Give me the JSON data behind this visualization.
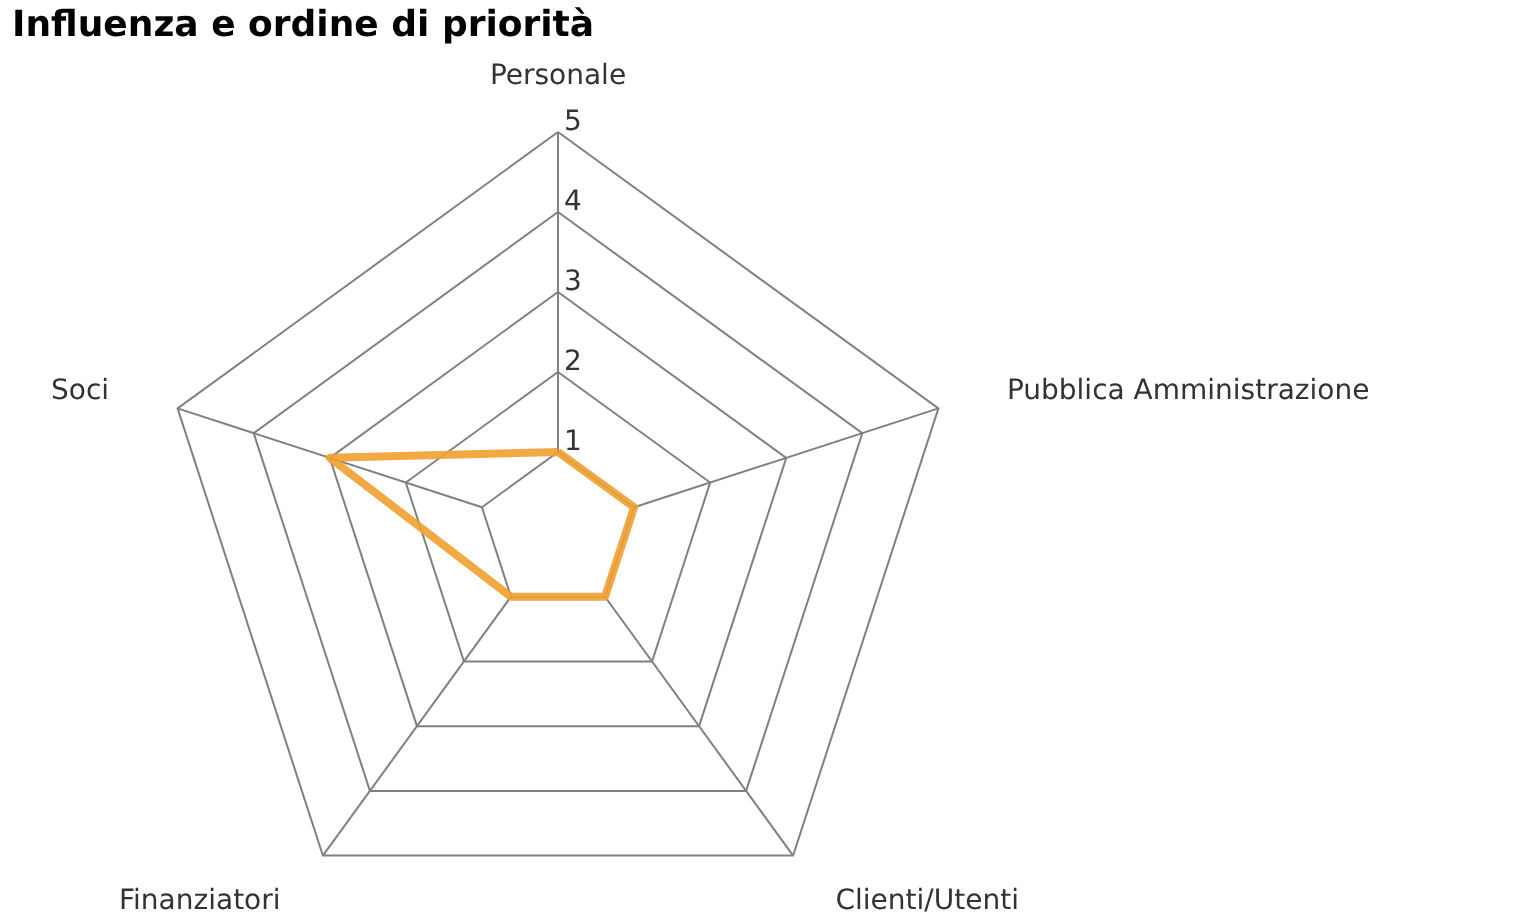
{
  "chart_data": {
    "type": "radar",
    "title": "Influenza e ordine di priorità",
    "categories": [
      "Personale",
      "Pubblica Amministrazione",
      "Clienti/Utenti",
      "Finanziatori",
      "Soci"
    ],
    "series": [
      {
        "color": "#f0a030",
        "values": [
          1,
          1,
          1,
          1,
          3
        ]
      }
    ],
    "ylim": [
      0,
      5
    ],
    "yticks": [
      1,
      2,
      3,
      4,
      5
    ]
  }
}
